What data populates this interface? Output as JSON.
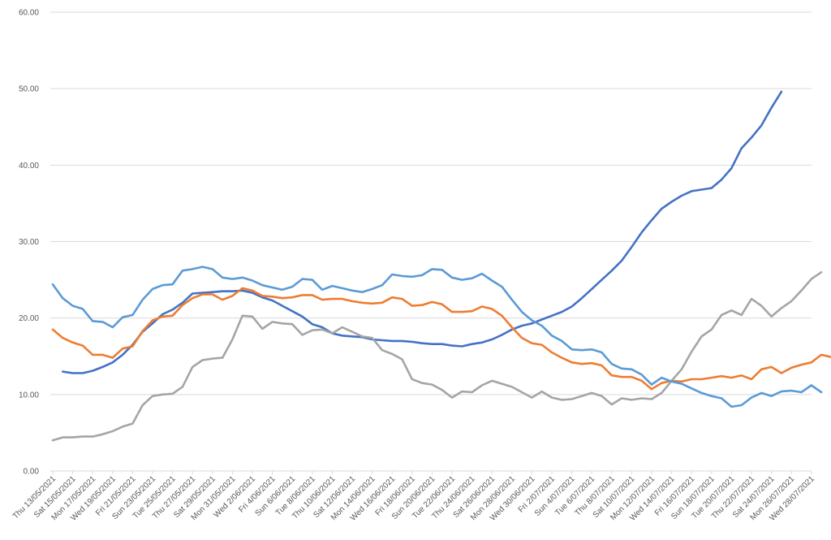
{
  "chart_data": {
    "type": "line",
    "title": "",
    "xlabel": "",
    "ylabel": "",
    "ylim": [
      0,
      60
    ],
    "yticks": [
      "0.00",
      "10.00",
      "20.00",
      "30.00",
      "40.00",
      "50.00",
      "60.00"
    ],
    "grid": true,
    "legend": "none",
    "x_labels": [
      "Thu 13/05/2021",
      "Sat 15/05/2021",
      "Mon 17/05/2021",
      "Wed 19/05/2021",
      "Fri 21/05/2021",
      "Sun 23/05/2021",
      "Tue 25/05/2021",
      "Thu 27/05/2021",
      "Sat 29/05/2021",
      "Mon 31/05/2021",
      "Wed 2/06/2021",
      "Fri 4/06/2021",
      "Sun 6/06/2021",
      "Tue 8/06/2021",
      "Thu 10/06/2021",
      "Sat 12/06/2021",
      "Mon 14/06/2021",
      "Wed 16/06/2021",
      "Fri 18/06/2021",
      "Sun 20/06/2021",
      "Tue 22/06/2021",
      "Thu 24/06/2021",
      "Sat 26/06/2021",
      "Mon 28/06/2021",
      "Wed 30/06/2021",
      "Fri 2/07/2021",
      "Sun 4/07/2021",
      "Tue 6/07/2021",
      "Thu 8/07/2021",
      "Sat 10/07/2021",
      "Mon 12/07/2021",
      "Wed 14/07/2021",
      "Fri 16/07/2021",
      "Sun 18/07/2021",
      "Tue 20/07/2021",
      "Thu 22/07/2021",
      "Sat 24/07/2021",
      "Mon 26/07/2021",
      "Wed 28/07/2021"
    ],
    "series": [
      {
        "color": "#4472c4",
        "start_index": 1,
        "values": [
          13.0,
          12.8,
          12.8,
          13.1,
          13.6,
          14.2,
          15.2,
          16.5,
          18.2,
          19.3,
          20.5,
          21.1,
          22.0,
          23.2,
          23.3,
          23.4,
          23.5,
          23.5,
          23.6,
          23.3,
          22.7,
          22.3,
          21.6,
          20.9,
          20.2,
          19.2,
          18.8,
          18.0,
          17.7,
          17.6,
          17.5,
          17.2,
          17.1,
          17.0,
          17.0,
          16.9,
          16.7,
          16.6,
          16.6,
          16.4,
          16.3,
          16.6,
          16.8,
          17.2,
          17.8,
          18.5,
          19.0,
          19.3,
          19.8,
          20.3,
          20.8,
          21.5,
          22.6,
          23.8,
          25.0,
          26.2,
          27.5,
          29.3,
          31.2,
          32.8,
          34.3,
          35.2,
          36.0,
          36.6,
          36.8,
          37.0,
          38.1,
          39.6,
          42.2,
          43.6,
          45.2,
          47.5,
          49.6
        ]
      },
      {
        "color": "#ed7d31",
        "start_index": 0,
        "values": [
          18.5,
          17.4,
          16.8,
          16.4,
          15.2,
          15.2,
          14.8,
          16.0,
          16.3,
          18.3,
          19.7,
          20.2,
          20.3,
          21.7,
          22.6,
          23.1,
          23.1,
          22.4,
          22.9,
          23.9,
          23.6,
          22.9,
          22.8,
          22.6,
          22.7,
          23.0,
          23.0,
          22.4,
          22.5,
          22.5,
          22.2,
          22.0,
          21.9,
          22.0,
          22.7,
          22.5,
          21.6,
          21.7,
          22.1,
          21.8,
          20.8,
          20.8,
          20.9,
          21.5,
          21.2,
          20.3,
          18.8,
          17.4,
          16.7,
          16.5,
          15.5,
          14.8,
          14.2,
          14.0,
          14.1,
          13.8,
          12.5,
          12.3,
          12.3,
          11.8,
          10.7,
          11.5,
          11.8,
          11.7,
          12.0,
          12.0,
          12.2,
          12.4,
          12.2,
          12.5,
          12.0,
          13.3,
          13.6,
          12.8,
          13.5,
          13.9,
          14.2,
          15.2,
          14.9
        ]
      },
      {
        "color": "#a5a5a5",
        "start_index": 0,
        "values": [
          4.0,
          4.4,
          4.4,
          4.5,
          4.5,
          4.8,
          5.2,
          5.8,
          6.2,
          8.6,
          9.8,
          10.0,
          10.1,
          11.0,
          13.6,
          14.5,
          14.7,
          14.8,
          17.2,
          20.3,
          20.2,
          18.6,
          19.5,
          19.3,
          19.2,
          17.8,
          18.4,
          18.5,
          18.0,
          18.8,
          18.2,
          17.6,
          17.4,
          15.8,
          15.3,
          14.6,
          12.0,
          11.5,
          11.3,
          10.6,
          9.6,
          10.4,
          10.3,
          11.2,
          11.8,
          11.4,
          11.0,
          10.3,
          9.6,
          10.4,
          9.6,
          9.3,
          9.4,
          9.8,
          10.2,
          9.8,
          8.7,
          9.5,
          9.3,
          9.5,
          9.4,
          10.2,
          11.8,
          13.3,
          15.6,
          17.6,
          18.5,
          20.4,
          21.0,
          20.4,
          22.5,
          21.6,
          20.2,
          21.3,
          22.2,
          23.6,
          25.1,
          26.0
        ]
      },
      {
        "color": "#5b9bd5",
        "start_index": 0,
        "values": [
          24.4,
          22.6,
          21.6,
          21.2,
          19.6,
          19.5,
          18.8,
          20.1,
          20.4,
          22.4,
          23.8,
          24.3,
          24.4,
          26.2,
          26.4,
          26.7,
          26.4,
          25.3,
          25.1,
          25.3,
          24.9,
          24.3,
          24.0,
          23.7,
          24.1,
          25.1,
          25.0,
          23.7,
          24.2,
          23.9,
          23.6,
          23.4,
          23.8,
          24.3,
          25.7,
          25.5,
          25.4,
          25.6,
          26.4,
          26.3,
          25.3,
          25.0,
          25.2,
          25.8,
          24.9,
          24.1,
          22.4,
          20.8,
          19.7,
          19.0,
          17.7,
          17.0,
          15.9,
          15.8,
          15.9,
          15.5,
          14.0,
          13.4,
          13.3,
          12.6,
          11.3,
          12.2,
          11.7,
          11.4,
          10.8,
          10.2,
          9.8,
          9.5,
          8.4,
          8.6,
          9.6,
          10.2,
          9.8,
          10.4,
          10.5,
          10.3,
          11.2,
          10.3
        ]
      }
    ]
  }
}
